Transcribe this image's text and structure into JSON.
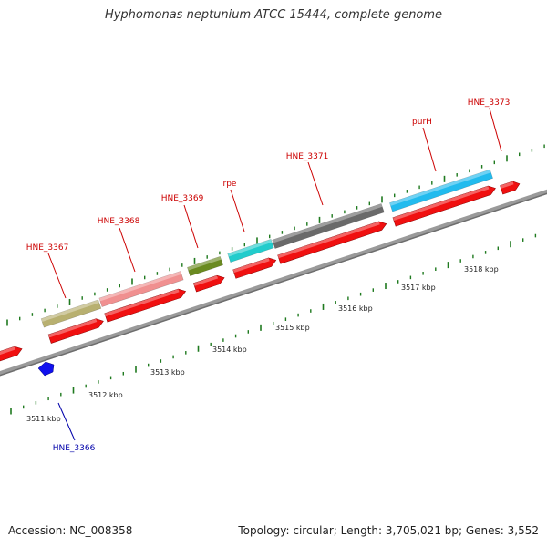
{
  "header": {
    "title": "Hyphomonas neptunium ATCC 15444, complete genome"
  },
  "footer": {
    "accession": "Accession: NC_008358",
    "topology": "Topology: circular; Length: 3,705,021 bp; Genes: 3,552"
  },
  "colors": {
    "backbone": "#9a9a9a",
    "cds": "#f01010",
    "forward_label": "#cc0000",
    "reverse_label": "#0000aa",
    "reverse_gene": "#1010ee",
    "tick": "#1f7a1f",
    "gene_HNE_3367": "#b8b070",
    "gene_HNE_3368": "#f09090",
    "gene_HNE_3369": "#6a8a20",
    "gene_rpe": "#22cccc",
    "gene_HNE_3371": "#6a6a6a",
    "gene_purH": "#22bbee"
  },
  "genes": [
    {
      "name": "HNE_3367",
      "strand": "forward"
    },
    {
      "name": "HNE_3368",
      "strand": "forward"
    },
    {
      "name": "HNE_3369",
      "strand": "forward"
    },
    {
      "name": "rpe",
      "strand": "forward"
    },
    {
      "name": "HNE_3371",
      "strand": "forward"
    },
    {
      "name": "purH",
      "strand": "forward"
    },
    {
      "name": "HNE_3373",
      "strand": "forward"
    },
    {
      "name": "HNE_3366",
      "strand": "reverse"
    }
  ],
  "scale_labels": [
    "3511 kbp",
    "3512 kbp",
    "3513 kbp",
    "3514 kbp",
    "3515 kbp",
    "3516 kbp",
    "3517 kbp",
    "3518 kbp"
  ]
}
